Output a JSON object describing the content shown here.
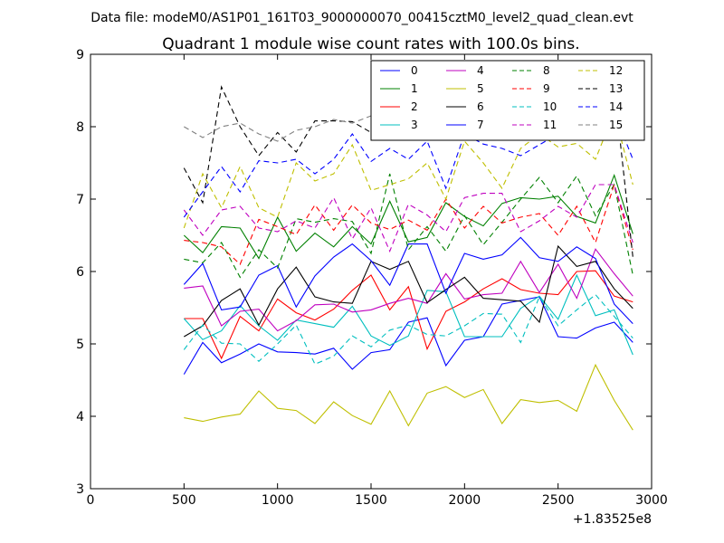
{
  "chart_data": {
    "type": "line",
    "suptitle": "Data file: modeM0/AS1P01_161T03_9000000070_00415cztM0_level2_quad_clean.evt",
    "title": "Quadrant 1 module wise count rates with 100.0s bins.",
    "xlabel": "",
    "ylabel": "",
    "x_offset_label": "+1.83525e8",
    "xlim": [
      0,
      3000
    ],
    "ylim": [
      3,
      9
    ],
    "xticks": [
      "0",
      "500",
      "1000",
      "1500",
      "2000",
      "2500",
      "3000"
    ],
    "yticks": [
      "3",
      "4",
      "5",
      "6",
      "7",
      "8",
      "9"
    ],
    "legend_position": "top-right",
    "x": [
      500,
      600,
      700,
      800,
      900,
      1000,
      1100,
      1200,
      1300,
      1400,
      1500,
      1600,
      1700,
      1800,
      1900,
      2000,
      2100,
      2200,
      2300,
      2400,
      2500,
      2600,
      2700,
      2800,
      2900
    ],
    "series": [
      {
        "name": "0",
        "color": "#0000ff",
        "dash": "solid",
        "values": [
          4.58,
          5.02,
          4.74,
          4.86,
          5.0,
          4.89,
          4.88,
          4.86,
          4.94,
          4.65,
          4.88,
          4.92,
          5.3,
          5.36,
          4.7,
          5.05,
          5.1,
          5.55,
          5.6,
          5.65,
          5.1,
          5.08,
          5.22,
          5.3,
          5.02
        ]
      },
      {
        "name": "1",
        "color": "#008000",
        "dash": "solid",
        "values": [
          6.5,
          6.26,
          6.62,
          6.6,
          6.18,
          6.75,
          6.28,
          6.53,
          6.34,
          6.62,
          6.38,
          6.97,
          6.41,
          6.47,
          6.95,
          6.76,
          6.63,
          6.94,
          7.02,
          7.0,
          7.04,
          6.76,
          6.67,
          7.33,
          6.52
        ]
      },
      {
        "name": "2",
        "color": "#ff0000",
        "dash": "solid",
        "values": [
          5.35,
          5.35,
          4.8,
          5.38,
          5.18,
          5.62,
          5.43,
          5.33,
          5.48,
          5.74,
          5.95,
          5.47,
          5.79,
          4.93,
          5.45,
          5.58,
          5.76,
          5.9,
          5.75,
          5.7,
          5.68,
          6.0,
          6.01,
          5.66,
          5.58
        ]
      },
      {
        "name": "3",
        "color": "#00bfbf",
        "dash": "solid",
        "values": [
          5.35,
          5.06,
          5.18,
          5.53,
          5.25,
          5.05,
          5.33,
          5.28,
          5.23,
          5.52,
          5.11,
          4.98,
          5.11,
          5.74,
          5.72,
          5.1,
          5.1,
          5.1,
          5.49,
          5.66,
          5.34,
          5.95,
          5.39,
          5.47,
          4.85
        ]
      },
      {
        "name": "4",
        "color": "#bf00bf",
        "dash": "solid",
        "values": [
          5.77,
          5.8,
          5.25,
          5.45,
          5.48,
          5.18,
          5.32,
          5.54,
          5.55,
          5.44,
          5.47,
          5.56,
          5.63,
          5.56,
          5.97,
          5.62,
          5.68,
          5.7,
          6.14,
          5.71,
          6.1,
          5.63,
          6.31,
          5.97,
          5.66
        ]
      },
      {
        "name": "5",
        "color": "#bfbf00",
        "dash": "solid",
        "values": [
          3.98,
          3.93,
          3.99,
          4.03,
          4.35,
          4.11,
          4.08,
          3.9,
          4.2,
          4.01,
          3.89,
          4.35,
          3.87,
          4.32,
          4.41,
          4.26,
          4.37,
          3.9,
          4.23,
          4.19,
          4.22,
          4.07,
          4.71,
          4.22,
          3.81
        ]
      },
      {
        "name": "6",
        "color": "#000000",
        "dash": "solid",
        "values": [
          5.1,
          5.25,
          5.6,
          5.76,
          5.26,
          5.76,
          6.06,
          5.65,
          5.58,
          5.56,
          6.14,
          6.03,
          6.14,
          5.57,
          5.75,
          5.92,
          5.63,
          5.61,
          5.59,
          5.3,
          6.35,
          6.07,
          6.14,
          5.76,
          5.49
        ]
      },
      {
        "name": "7",
        "color": "#0000ff",
        "dash": "solid",
        "values": [
          5.82,
          6.11,
          5.47,
          5.51,
          5.95,
          6.08,
          5.51,
          5.94,
          6.2,
          6.38,
          6.15,
          5.81,
          6.38,
          6.38,
          5.7,
          6.25,
          6.17,
          6.23,
          6.47,
          6.19,
          6.14,
          6.34,
          6.18,
          5.55,
          5.28
        ]
      },
      {
        "name": "8",
        "color": "#008000",
        "dash": "dash",
        "values": [
          6.17,
          6.12,
          6.4,
          5.92,
          6.3,
          6.05,
          6.73,
          6.68,
          6.73,
          6.69,
          6.25,
          7.35,
          6.3,
          6.62,
          6.28,
          6.77,
          6.37,
          6.68,
          7.0,
          7.3,
          6.95,
          7.32,
          6.77,
          7.2,
          5.95
        ]
      },
      {
        "name": "9",
        "color": "#ff0000",
        "dash": "dash",
        "values": [
          6.43,
          6.4,
          6.34,
          6.1,
          6.72,
          6.62,
          6.51,
          6.92,
          6.57,
          6.92,
          6.67,
          6.58,
          6.71,
          6.57,
          7.0,
          6.6,
          6.9,
          6.67,
          6.75,
          6.8,
          6.5,
          6.9,
          6.4,
          7.2,
          6.3
        ]
      },
      {
        "name": "10",
        "color": "#00bfbf",
        "dash": "dash",
        "values": [
          4.92,
          5.26,
          5.01,
          5.0,
          4.76,
          5.0,
          5.26,
          4.72,
          4.83,
          5.11,
          4.96,
          5.19,
          5.26,
          5.13,
          5.11,
          5.25,
          5.42,
          5.41,
          5.02,
          5.65,
          5.25,
          5.47,
          5.68,
          5.38,
          5.08
        ]
      },
      {
        "name": "11",
        "color": "#bf00bf",
        "dash": "dash",
        "values": [
          6.85,
          6.5,
          6.85,
          6.9,
          6.6,
          6.55,
          6.7,
          6.6,
          7.02,
          6.45,
          6.88,
          6.28,
          6.93,
          6.78,
          6.55,
          7.02,
          7.08,
          7.08,
          6.55,
          6.7,
          6.9,
          6.75,
          7.2,
          7.2,
          6.4
        ]
      },
      {
        "name": "12",
        "color": "#bfbf00",
        "dash": "dash",
        "values": [
          6.6,
          7.35,
          6.88,
          7.45,
          6.88,
          6.75,
          7.5,
          7.25,
          7.35,
          7.75,
          7.12,
          7.2,
          7.28,
          7.5,
          7.0,
          7.8,
          7.5,
          7.15,
          7.7,
          7.9,
          7.72,
          7.77,
          7.55,
          8.2,
          7.2
        ]
      },
      {
        "name": "13",
        "color": "#000000",
        "dash": "dash",
        "values": [
          7.43,
          6.95,
          8.55,
          8.0,
          7.6,
          7.92,
          7.65,
          8.08,
          8.08,
          8.07,
          7.92,
          8.44,
          8.34,
          8.53,
          8.29,
          8.08,
          8.63,
          8.07,
          8.23,
          8.37,
          8.2,
          8.23,
          8.4,
          8.55,
          6.2
        ]
      },
      {
        "name": "14",
        "color": "#0000ff",
        "dash": "dash",
        "values": [
          6.75,
          7.1,
          7.45,
          7.1,
          7.53,
          7.5,
          7.55,
          7.35,
          7.55,
          7.9,
          7.52,
          7.7,
          7.55,
          7.8,
          7.15,
          7.9,
          7.76,
          7.7,
          7.6,
          7.75,
          7.9,
          7.88,
          8.0,
          8.2,
          7.55
        ]
      },
      {
        "name": "15",
        "color": "#808080",
        "dash": "dash",
        "values": [
          8.0,
          7.85,
          8.0,
          8.05,
          7.9,
          7.8,
          7.95,
          8.0,
          8.1,
          8.05,
          8.15,
          8.2,
          8.3,
          8.4,
          8.1,
          8.35,
          8.5,
          8.4,
          8.3,
          8.45,
          8.3,
          8.25,
          8.55,
          8.6,
          7.95
        ]
      }
    ]
  }
}
